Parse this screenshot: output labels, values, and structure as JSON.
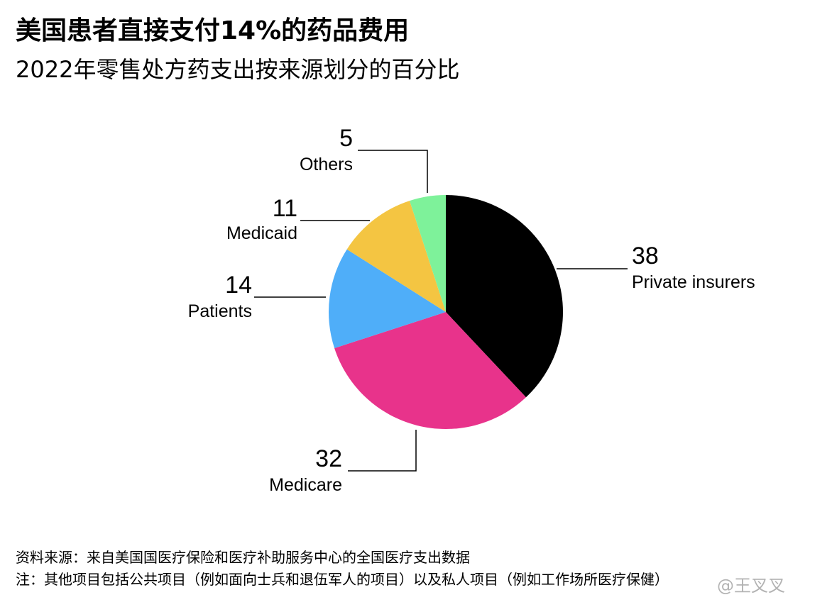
{
  "title": "美国患者直接支付14%的药品费用",
  "subtitle": "2022年零售处方药支出按来源划分的百分比",
  "chart_data": {
    "type": "pie",
    "unit": "%",
    "slices": [
      {
        "name": "Private insurers",
        "value": 38,
        "color": "#000000"
      },
      {
        "name": "Medicare",
        "value": 32,
        "color": "#E8338B"
      },
      {
        "name": "Patients",
        "value": 14,
        "color": "#4FAEF9"
      },
      {
        "name": "Medicaid",
        "value": 11,
        "color": "#F4C542"
      },
      {
        "name": "Others",
        "value": 5,
        "color": "#7EF29A"
      }
    ]
  },
  "footer": {
    "source": "资料来源：来自美国国医疗保险和医疗补助服务中心的全国医疗支出数据",
    "note": "注：其他项目包括公共项目（例如面向士兵和退伍军人的项目）以及私人项目（例如工作场所医疗保健）"
  },
  "watermark": "@王叉叉"
}
